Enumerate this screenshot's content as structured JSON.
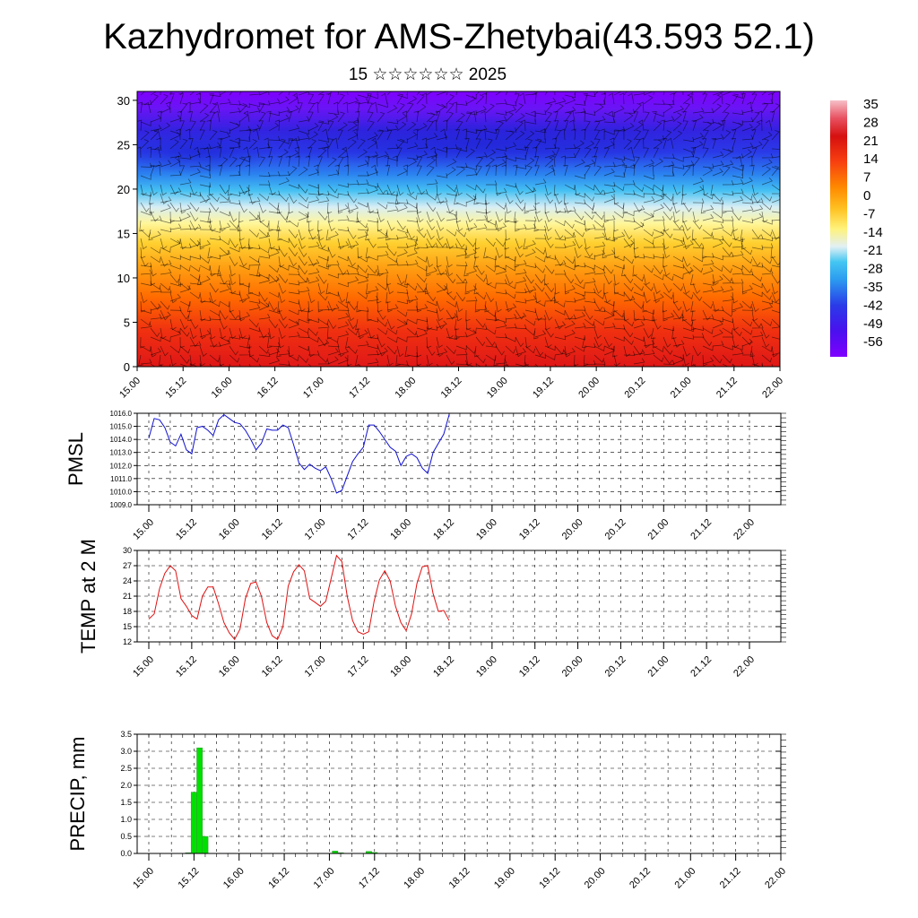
{
  "header": {
    "title": "Kazhydromet for AMS-Zhetybai(43.593 52.1)",
    "subtitle": "15 ☆☆☆☆☆☆ 2025"
  },
  "chart_data": [
    {
      "type": "heatmap",
      "name": "temperature-wind-cross-section",
      "x_tick_labels": [
        "15.00",
        "15.12",
        "16.00",
        "16.12",
        "17.00",
        "17.12",
        "18.00",
        "18.12",
        "19.00",
        "19.12",
        "20.00",
        "20.12",
        "21.00",
        "21.12",
        "22.00"
      ],
      "y_ticks": [
        0,
        5,
        10,
        15,
        20,
        25,
        30
      ],
      "ylim": [
        0,
        31
      ],
      "colorbar_labels": [
        "35",
        "28",
        "21",
        "14",
        "7",
        "0",
        "-7",
        "-14",
        "-21",
        "-28",
        "-35",
        "-42",
        "-49",
        "-56"
      ],
      "colorbar_range": [
        -60,
        38
      ],
      "colors": {
        "cold": "#7f00ff",
        "cool": "#2f34e6",
        "cyan": "#38c0f0",
        "pale": "#fff59a",
        "warm": "#ff7f00",
        "hot": "#e8101c",
        "max": "#f2b0b8"
      },
      "overlay": "wind barbs"
    },
    {
      "type": "line",
      "name": "pmsl",
      "ylabel": "PMSL",
      "ylim": [
        1009.0,
        1016.0
      ],
      "y_tick_labels": [
        "1009.0",
        "1010.0",
        "1011.0",
        "1012.0",
        "1013.0",
        "1014.0",
        "1015.0",
        "1016.0"
      ],
      "x_tick_labels": [
        "15.00",
        "15.12",
        "16.00",
        "16.12",
        "17.00",
        "17.12",
        "18.00",
        "18.12",
        "19.00",
        "19.12",
        "20.00",
        "20.12",
        "21.00",
        "21.12",
        "22.00"
      ],
      "color": "#1010d0",
      "values": [
        1014.1,
        1015.6,
        1015.5,
        1014.9,
        1013.8,
        1013.5,
        1014.4,
        1013.2,
        1012.9,
        1014.9,
        1015.0,
        1014.7,
        1014.3,
        1015.5,
        1015.9,
        1015.6,
        1015.3,
        1015.2,
        1014.7,
        1014.0,
        1013.2,
        1013.7,
        1014.8,
        1014.7,
        1014.7,
        1015.1,
        1014.9,
        1013.6,
        1012.2,
        1011.7,
        1012.1,
        1011.8,
        1011.6,
        1011.9,
        1011.0,
        1009.9,
        1010.1,
        1011.2,
        1012.3,
        1012.9,
        1013.4,
        1015.1,
        1015.1,
        1014.6,
        1014.0,
        1013.4,
        1013.1,
        1012.0,
        1012.7,
        1012.9,
        1012.6,
        1011.8,
        1011.4,
        1013.0,
        1013.7,
        1014.4,
        1015.9
      ]
    },
    {
      "type": "line",
      "name": "temp-2m",
      "ylabel": "TEMP at 2 M",
      "ylim": [
        12,
        30
      ],
      "y_tick_labels": [
        "12",
        "15",
        "18",
        "21",
        "24",
        "27",
        "30"
      ],
      "x_tick_labels": [
        "15.00",
        "15.12",
        "16.00",
        "16.12",
        "17.00",
        "17.12",
        "18.00",
        "18.12",
        "19.00",
        "19.12",
        "20.00",
        "20.12",
        "21.00",
        "21.12",
        "22.00"
      ],
      "color": "#e01010",
      "values": [
        16.5,
        17.5,
        22.5,
        25.5,
        27.0,
        26.0,
        20.5,
        19.0,
        17.2,
        16.5,
        21.0,
        22.8,
        22.8,
        19.5,
        15.8,
        13.8,
        12.5,
        14.5,
        20.5,
        23.5,
        23.8,
        21.0,
        15.8,
        13.2,
        12.5,
        15.0,
        23.0,
        25.8,
        27.2,
        26.0,
        20.5,
        19.8,
        19.0,
        20.0,
        24.5,
        29.0,
        27.8,
        21.0,
        16.2,
        14.0,
        13.5,
        14.0,
        20.0,
        24.2,
        26.0,
        24.0,
        19.0,
        15.8,
        14.2,
        17.5,
        23.5,
        26.8,
        27.0,
        21.5,
        18.0,
        18.2,
        16.2
      ]
    },
    {
      "type": "bar",
      "name": "precipitation",
      "ylabel": "PRECIP, mm",
      "ylim": [
        0,
        3.5
      ],
      "y_tick_labels": [
        "0.0",
        "0.5",
        "1.0",
        "1.5",
        "2.0",
        "2.5",
        "3.0",
        "3.5"
      ],
      "x_tick_labels": [
        "15.00",
        "15.12",
        "16.00",
        "16.12",
        "17.00",
        "17.12",
        "18.00",
        "18.12",
        "19.00",
        "19.12",
        "20.00",
        "20.12",
        "21.00",
        "21.12",
        "22.00"
      ],
      "color": "#00e000",
      "bar_interval_hours": 3,
      "values": [
        0,
        0,
        0,
        0,
        0,
        0,
        0,
        0.02,
        1.8,
        3.1,
        0.5,
        0,
        0,
        0,
        0,
        0,
        0,
        0,
        0,
        0,
        0,
        0,
        0,
        0,
        0,
        0,
        0,
        0,
        0,
        0,
        0,
        0,
        0,
        0.07,
        0.02,
        0,
        0,
        0,
        0,
        0.06,
        0.03,
        0,
        0,
        0,
        0,
        0,
        0,
        0,
        0,
        0,
        0,
        0,
        0,
        0,
        0,
        0,
        0
      ]
    }
  ]
}
